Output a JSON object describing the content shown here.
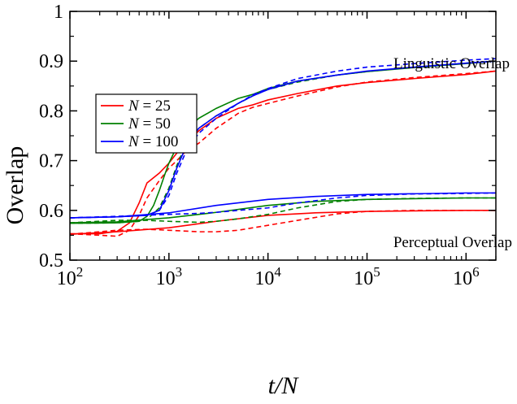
{
  "chart_data": {
    "type": "line",
    "title": "",
    "xlabel": "t/N",
    "ylabel": "Overlap",
    "xscale": "log",
    "xlim": [
      100,
      2000000
    ],
    "ylim": [
      0.5,
      1.0
    ],
    "x_tick_labels": [
      {
        "x": 100,
        "base": "10",
        "exp": "2"
      },
      {
        "x": 1000,
        "base": "10",
        "exp": "3"
      },
      {
        "x": 10000,
        "base": "10",
        "exp": "4"
      },
      {
        "x": 100000,
        "base": "10",
        "exp": "5"
      },
      {
        "x": 1000000,
        "base": "10",
        "exp": "6"
      }
    ],
    "y_ticks": [
      0.5,
      0.6,
      0.7,
      0.8,
      0.9,
      1.0
    ],
    "y_tick_labels": [
      "0.5",
      "0.6",
      "0.7",
      "0.8",
      "0.9",
      "1"
    ],
    "grid": false,
    "legend": {
      "placement": "upper-left",
      "entries": [
        {
          "var": "N",
          "text": " = 25",
          "color": "#ff0000"
        },
        {
          "var": "N",
          "text": " = 50",
          "color": "#008000"
        },
        {
          "var": "N",
          "text": " = 100",
          "color": "#0000ff"
        }
      ]
    },
    "annotations": [
      {
        "text": "Linguistic Overlap",
        "x": 6000000,
        "y": 0.918,
        "anchor": "end"
      },
      {
        "text": "Perceptual Overlap",
        "x": 6000000,
        "y": 0.648,
        "anchor": "end"
      }
    ],
    "series": [
      {
        "key": "ling-25-solid",
        "group": "linguistic",
        "N": 25,
        "style": "solid",
        "color": "#ff0000",
        "points": [
          [
            100,
            0.553
          ],
          [
            200,
            0.553
          ],
          [
            300,
            0.558
          ],
          [
            400,
            0.575
          ],
          [
            500,
            0.615
          ],
          [
            600,
            0.655
          ],
          [
            800,
            0.675
          ],
          [
            1000,
            0.695
          ],
          [
            1200,
            0.715
          ],
          [
            1500,
            0.735
          ],
          [
            2000,
            0.76
          ],
          [
            3000,
            0.785
          ],
          [
            5000,
            0.805
          ],
          [
            7000,
            0.812
          ],
          [
            10000,
            0.822
          ],
          [
            20000,
            0.835
          ],
          [
            50000,
            0.85
          ],
          [
            100000,
            0.857
          ],
          [
            300000,
            0.865
          ],
          [
            1000000,
            0.873
          ],
          [
            2000000,
            0.88
          ]
        ]
      },
      {
        "key": "ling-25-dashed",
        "group": "linguistic",
        "N": 25,
        "style": "dashed",
        "color": "#ff0000",
        "points": [
          [
            100,
            0.553
          ],
          [
            200,
            0.55
          ],
          [
            300,
            0.548
          ],
          [
            400,
            0.56
          ],
          [
            500,
            0.59
          ],
          [
            600,
            0.625
          ],
          [
            800,
            0.66
          ],
          [
            1000,
            0.685
          ],
          [
            1200,
            0.7
          ],
          [
            1500,
            0.72
          ],
          [
            2000,
            0.735
          ],
          [
            3000,
            0.765
          ],
          [
            5000,
            0.795
          ],
          [
            7000,
            0.807
          ],
          [
            10000,
            0.815
          ],
          [
            20000,
            0.83
          ],
          [
            50000,
            0.848
          ],
          [
            100000,
            0.858
          ],
          [
            300000,
            0.867
          ],
          [
            1000000,
            0.875
          ],
          [
            2000000,
            0.88
          ]
        ]
      },
      {
        "key": "ling-50-solid",
        "group": "linguistic",
        "N": 50,
        "style": "solid",
        "color": "#008000",
        "points": [
          [
            100,
            0.574
          ],
          [
            300,
            0.575
          ],
          [
            500,
            0.578
          ],
          [
            600,
            0.588
          ],
          [
            700,
            0.61
          ],
          [
            800,
            0.64
          ],
          [
            900,
            0.67
          ],
          [
            1000,
            0.695
          ],
          [
            1200,
            0.728
          ],
          [
            1500,
            0.762
          ],
          [
            2000,
            0.785
          ],
          [
            3000,
            0.805
          ],
          [
            5000,
            0.825
          ],
          [
            7000,
            0.833
          ],
          [
            10000,
            0.845
          ],
          [
            20000,
            0.86
          ],
          [
            50000,
            0.872
          ],
          [
            100000,
            0.879
          ],
          [
            300000,
            0.887
          ],
          [
            1000000,
            0.895
          ],
          [
            2000000,
            0.9
          ]
        ]
      },
      {
        "key": "ling-50-dashed",
        "group": "linguistic",
        "N": 50,
        "style": "dashed",
        "color": "#008000",
        "points": [
          [
            100,
            0.574
          ],
          [
            300,
            0.575
          ],
          [
            500,
            0.578
          ],
          [
            600,
            0.582
          ],
          [
            800,
            0.605
          ],
          [
            1000,
            0.645
          ],
          [
            1200,
            0.69
          ],
          [
            1500,
            0.735
          ],
          [
            2000,
            0.765
          ],
          [
            3000,
            0.79
          ],
          [
            5000,
            0.815
          ],
          [
            7000,
            0.83
          ],
          [
            10000,
            0.843
          ],
          [
            20000,
            0.858
          ],
          [
            50000,
            0.872
          ],
          [
            100000,
            0.879
          ],
          [
            300000,
            0.888
          ],
          [
            1000000,
            0.896
          ],
          [
            2000000,
            0.9
          ]
        ]
      },
      {
        "key": "ling-100-solid",
        "group": "linguistic",
        "N": 100,
        "style": "solid",
        "color": "#0000ff",
        "points": [
          [
            100,
            0.585
          ],
          [
            300,
            0.587
          ],
          [
            600,
            0.59
          ],
          [
            800,
            0.6
          ],
          [
            1000,
            0.64
          ],
          [
            1200,
            0.685
          ],
          [
            1500,
            0.73
          ],
          [
            2000,
            0.765
          ],
          [
            3000,
            0.79
          ],
          [
            5000,
            0.815
          ],
          [
            7000,
            0.83
          ],
          [
            10000,
            0.843
          ],
          [
            20000,
            0.86
          ],
          [
            50000,
            0.872
          ],
          [
            100000,
            0.88
          ],
          [
            300000,
            0.888
          ],
          [
            1000000,
            0.896
          ],
          [
            2000000,
            0.9
          ]
        ]
      },
      {
        "key": "ling-100-dashed",
        "group": "linguistic",
        "N": 100,
        "style": "dashed",
        "color": "#0000ff",
        "points": [
          [
            100,
            0.585
          ],
          [
            300,
            0.587
          ],
          [
            600,
            0.59
          ],
          [
            800,
            0.6
          ],
          [
            1000,
            0.63
          ],
          [
            1200,
            0.675
          ],
          [
            1500,
            0.72
          ],
          [
            2000,
            0.755
          ],
          [
            3000,
            0.785
          ],
          [
            5000,
            0.815
          ],
          [
            7000,
            0.832
          ],
          [
            10000,
            0.845
          ],
          [
            20000,
            0.865
          ],
          [
            50000,
            0.88
          ],
          [
            100000,
            0.888
          ],
          [
            300000,
            0.895
          ],
          [
            1000000,
            0.902
          ],
          [
            2000000,
            0.905
          ]
        ]
      },
      {
        "key": "perc-25-solid",
        "group": "perceptual",
        "N": 25,
        "style": "solid",
        "color": "#ff0000",
        "points": [
          [
            100,
            0.552
          ],
          [
            300,
            0.557
          ],
          [
            1000,
            0.565
          ],
          [
            3000,
            0.578
          ],
          [
            10000,
            0.59
          ],
          [
            30000,
            0.595
          ],
          [
            100000,
            0.598
          ],
          [
            1000000,
            0.6
          ],
          [
            2000000,
            0.6
          ]
        ]
      },
      {
        "key": "perc-25-dashed",
        "group": "perceptual",
        "N": 25,
        "style": "dashed",
        "color": "#ff0000",
        "points": [
          [
            100,
            0.552
          ],
          [
            300,
            0.56
          ],
          [
            600,
            0.562
          ],
          [
            1000,
            0.56
          ],
          [
            2000,
            0.557
          ],
          [
            3000,
            0.557
          ],
          [
            5000,
            0.56
          ],
          [
            10000,
            0.57
          ],
          [
            20000,
            0.58
          ],
          [
            50000,
            0.593
          ],
          [
            100000,
            0.598
          ],
          [
            300000,
            0.6
          ],
          [
            1000000,
            0.6
          ],
          [
            2000000,
            0.6
          ]
        ]
      },
      {
        "key": "perc-50-solid",
        "group": "perceptual",
        "N": 50,
        "style": "solid",
        "color": "#008000",
        "points": [
          [
            100,
            0.575
          ],
          [
            300,
            0.577
          ],
          [
            1000,
            0.585
          ],
          [
            3000,
            0.596
          ],
          [
            10000,
            0.61
          ],
          [
            30000,
            0.618
          ],
          [
            100000,
            0.622
          ],
          [
            1000000,
            0.625
          ],
          [
            2000000,
            0.625
          ]
        ]
      },
      {
        "key": "perc-50-dashed",
        "group": "perceptual",
        "N": 50,
        "style": "dashed",
        "color": "#008000",
        "points": [
          [
            100,
            0.575
          ],
          [
            300,
            0.58
          ],
          [
            600,
            0.58
          ],
          [
            1000,
            0.578
          ],
          [
            2000,
            0.576
          ],
          [
            3000,
            0.578
          ],
          [
            5000,
            0.583
          ],
          [
            10000,
            0.592
          ],
          [
            20000,
            0.605
          ],
          [
            50000,
            0.618
          ],
          [
            100000,
            0.622
          ],
          [
            300000,
            0.624
          ],
          [
            1000000,
            0.625
          ],
          [
            2000000,
            0.625
          ]
        ]
      },
      {
        "key": "perc-100-solid",
        "group": "perceptual",
        "N": 100,
        "style": "solid",
        "color": "#0000ff",
        "points": [
          [
            100,
            0.585
          ],
          [
            300,
            0.587
          ],
          [
            1000,
            0.595
          ],
          [
            3000,
            0.61
          ],
          [
            10000,
            0.622
          ],
          [
            30000,
            0.628
          ],
          [
            100000,
            0.632
          ],
          [
            1000000,
            0.635
          ],
          [
            2000000,
            0.635
          ]
        ]
      },
      {
        "key": "perc-100-dashed",
        "group": "perceptual",
        "N": 100,
        "style": "dashed",
        "color": "#0000ff",
        "points": [
          [
            100,
            0.585
          ],
          [
            300,
            0.588
          ],
          [
            1000,
            0.592
          ],
          [
            2000,
            0.594
          ],
          [
            3000,
            0.596
          ],
          [
            5000,
            0.6
          ],
          [
            10000,
            0.605
          ],
          [
            20000,
            0.615
          ],
          [
            50000,
            0.625
          ],
          [
            100000,
            0.63
          ],
          [
            300000,
            0.633
          ],
          [
            1000000,
            0.634
          ],
          [
            2000000,
            0.635
          ]
        ]
      }
    ]
  }
}
